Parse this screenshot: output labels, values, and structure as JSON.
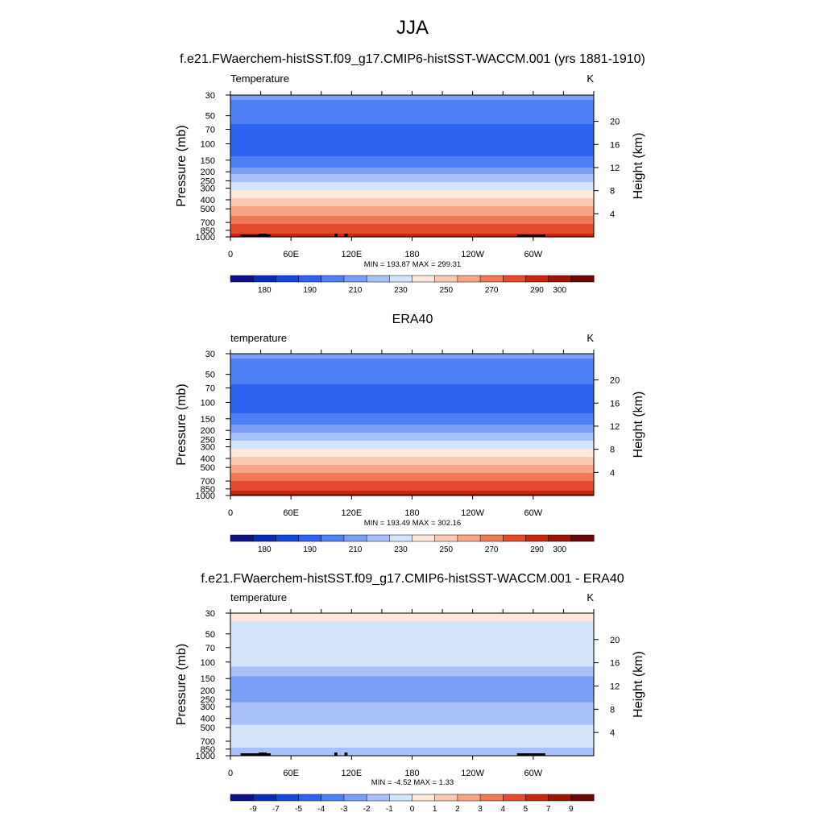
{
  "figure": {
    "title": "JJA"
  },
  "colors": {
    "seq": [
      "#0f0f88",
      "#0a2bb5",
      "#1748dc",
      "#2e63f0",
      "#4f7ff5",
      "#7b9ef6",
      "#a9c1f9",
      "#d4e4fb",
      "#fde9dc",
      "#fbcab3",
      "#f6a586",
      "#f07a58",
      "#e64a2e",
      "#c9260f",
      "#9c1607",
      "#6a0707"
    ],
    "div": [
      "#0f0f88",
      "#0a2bb5",
      "#1748dc",
      "#2e63f0",
      "#4f7ff5",
      "#7b9ef6",
      "#a9c1f9",
      "#d4e4fb",
      "#fde9dc",
      "#fbcab3",
      "#f6a586",
      "#f07a58",
      "#e64a2e",
      "#c9260f",
      "#9c1607",
      "#6a0707"
    ],
    "land": "#000000"
  },
  "chart_data": [
    {
      "type": "heatmap",
      "panel_title": "f.e21.FWaerchem-histSST.f09_g17.CMIP6-histSST-WACCM.001 (yrs 1881-1910)",
      "variable_label": "Temperature",
      "units": "K",
      "ylabel": "Pressure (mb)",
      "ylabel_right": "Height (km)",
      "y_ticks": [
        "30",
        "50",
        "70",
        "100",
        "150",
        "200",
        "250",
        "300",
        "400",
        "500",
        "700",
        "850",
        "1000"
      ],
      "y_tick_values": [
        30,
        50,
        70,
        100,
        150,
        200,
        250,
        300,
        400,
        500,
        700,
        850,
        1000
      ],
      "right_ticks": [
        "20",
        "16",
        "12",
        "8",
        "4"
      ],
      "right_tick_values": [
        20,
        16,
        12,
        8,
        4
      ],
      "x_ticks": [
        "0",
        "60E",
        "120E",
        "180",
        "120W",
        "60W"
      ],
      "x_tick_values": [
        0,
        60,
        120,
        180,
        240,
        300
      ],
      "xlim": [
        0,
        360
      ],
      "ylim": [
        1000,
        30
      ],
      "stats": "MIN = 193.87  MAX = 299.31",
      "contour_levels": [
        175,
        180,
        185,
        190,
        200,
        210,
        220,
        230,
        240,
        250,
        260,
        270,
        280,
        290,
        295,
        300
      ],
      "colorbar_labels": [
        "180",
        "190",
        "210",
        "230",
        "250",
        "270",
        "290",
        "300"
      ],
      "profile": [
        {
          "p": 30,
          "v": 211
        },
        {
          "p": 50,
          "v": 206
        },
        {
          "p": 70,
          "v": 197
        },
        {
          "p": 100,
          "v": 194.5
        },
        {
          "p": 150,
          "v": 202
        },
        {
          "p": 200,
          "v": 216
        },
        {
          "p": 250,
          "v": 228
        },
        {
          "p": 300,
          "v": 237
        },
        {
          "p": 400,
          "v": 252
        },
        {
          "p": 500,
          "v": 263
        },
        {
          "p": 700,
          "v": 278
        },
        {
          "p": 850,
          "v": 287
        },
        {
          "p": 1000,
          "v": 294
        }
      ],
      "land_blocks": [
        [
          10,
          40
        ],
        [
          28,
          36
        ],
        [
          103,
          106
        ],
        [
          113,
          116
        ],
        [
          284,
          312
        ]
      ]
    },
    {
      "type": "heatmap",
      "panel_title": "ERA40",
      "variable_label": "temperature",
      "units": "K",
      "ylabel": "Pressure (mb)",
      "ylabel_right": "Height (km)",
      "y_ticks": [
        "30",
        "50",
        "70",
        "100",
        "150",
        "200",
        "250",
        "300",
        "400",
        "500",
        "700",
        "850",
        "1000"
      ],
      "y_tick_values": [
        30,
        50,
        70,
        100,
        150,
        200,
        250,
        300,
        400,
        500,
        700,
        850,
        1000
      ],
      "right_ticks": [
        "20",
        "16",
        "12",
        "8",
        "4"
      ],
      "right_tick_values": [
        20,
        16,
        12,
        8,
        4
      ],
      "x_ticks": [
        "0",
        "60E",
        "120E",
        "180",
        "120W",
        "60W"
      ],
      "x_tick_values": [
        0,
        60,
        120,
        180,
        240,
        300
      ],
      "xlim": [
        0,
        360
      ],
      "ylim": [
        1000,
        30
      ],
      "stats": "MIN = 193.49  MAX = 302.16",
      "contour_levels": [
        175,
        180,
        185,
        190,
        200,
        210,
        220,
        230,
        240,
        250,
        260,
        270,
        280,
        290,
        295,
        300
      ],
      "colorbar_labels": [
        "180",
        "190",
        "210",
        "230",
        "250",
        "270",
        "290",
        "300"
      ],
      "profile": [
        {
          "p": 30,
          "v": 211
        },
        {
          "p": 50,
          "v": 206
        },
        {
          "p": 70,
          "v": 198
        },
        {
          "p": 100,
          "v": 194.5
        },
        {
          "p": 150,
          "v": 203
        },
        {
          "p": 200,
          "v": 216
        },
        {
          "p": 250,
          "v": 228
        },
        {
          "p": 300,
          "v": 238
        },
        {
          "p": 400,
          "v": 253
        },
        {
          "p": 500,
          "v": 264
        },
        {
          "p": 700,
          "v": 280
        },
        {
          "p": 850,
          "v": 289
        },
        {
          "p": 1000,
          "v": 296
        }
      ],
      "land_blocks": []
    },
    {
      "type": "heatmap",
      "panel_title": "f.e21.FWaerchem-histSST.f09_g17.CMIP6-histSST-WACCM.001 - ERA40",
      "variable_label": "temperature",
      "units": "K",
      "ylabel": "Pressure (mb)",
      "ylabel_right": "Height (km)",
      "y_ticks": [
        "30",
        "50",
        "70",
        "100",
        "150",
        "200",
        "250",
        "300",
        "400",
        "500",
        "700",
        "850",
        "1000"
      ],
      "y_tick_values": [
        30,
        50,
        70,
        100,
        150,
        200,
        250,
        300,
        400,
        500,
        700,
        850,
        1000
      ],
      "right_ticks": [
        "20",
        "16",
        "12",
        "8",
        "4"
      ],
      "right_tick_values": [
        20,
        16,
        12,
        8,
        4
      ],
      "x_ticks": [
        "0",
        "60E",
        "120E",
        "180",
        "120W",
        "60W"
      ],
      "x_tick_values": [
        0,
        60,
        120,
        180,
        240,
        300
      ],
      "xlim": [
        0,
        360
      ],
      "ylim": [
        1000,
        30
      ],
      "stats": "MIN =  -4.52  MAX =   1.33",
      "contour_levels": [
        -11,
        -9,
        -7,
        -5,
        -4,
        -3,
        -2,
        -1,
        0,
        1,
        2,
        3,
        4,
        5,
        7,
        9
      ],
      "colorbar_labels": [
        "-9",
        "-7",
        "-5",
        "-4",
        "-3",
        "-2",
        "-1",
        "0",
        "1",
        "2",
        "3",
        "4",
        "5",
        "7",
        "9"
      ],
      "profile": [
        {
          "p": 30,
          "v": 0.3
        },
        {
          "p": 50,
          "v": -0.5
        },
        {
          "p": 70,
          "v": -0.8
        },
        {
          "p": 100,
          "v": -0.6
        },
        {
          "p": 150,
          "v": -2.3
        },
        {
          "p": 200,
          "v": -2.6
        },
        {
          "p": 250,
          "v": -2.2
        },
        {
          "p": 300,
          "v": -1.7
        },
        {
          "p": 400,
          "v": -1.3
        },
        {
          "p": 500,
          "v": -0.9
        },
        {
          "p": 700,
          "v": -0.7
        },
        {
          "p": 850,
          "v": -1.1
        },
        {
          "p": 1000,
          "v": -1.0
        }
      ],
      "land_blocks": [
        [
          10,
          40
        ],
        [
          28,
          36
        ],
        [
          103,
          106
        ],
        [
          113,
          116
        ],
        [
          284,
          312
        ]
      ]
    }
  ]
}
